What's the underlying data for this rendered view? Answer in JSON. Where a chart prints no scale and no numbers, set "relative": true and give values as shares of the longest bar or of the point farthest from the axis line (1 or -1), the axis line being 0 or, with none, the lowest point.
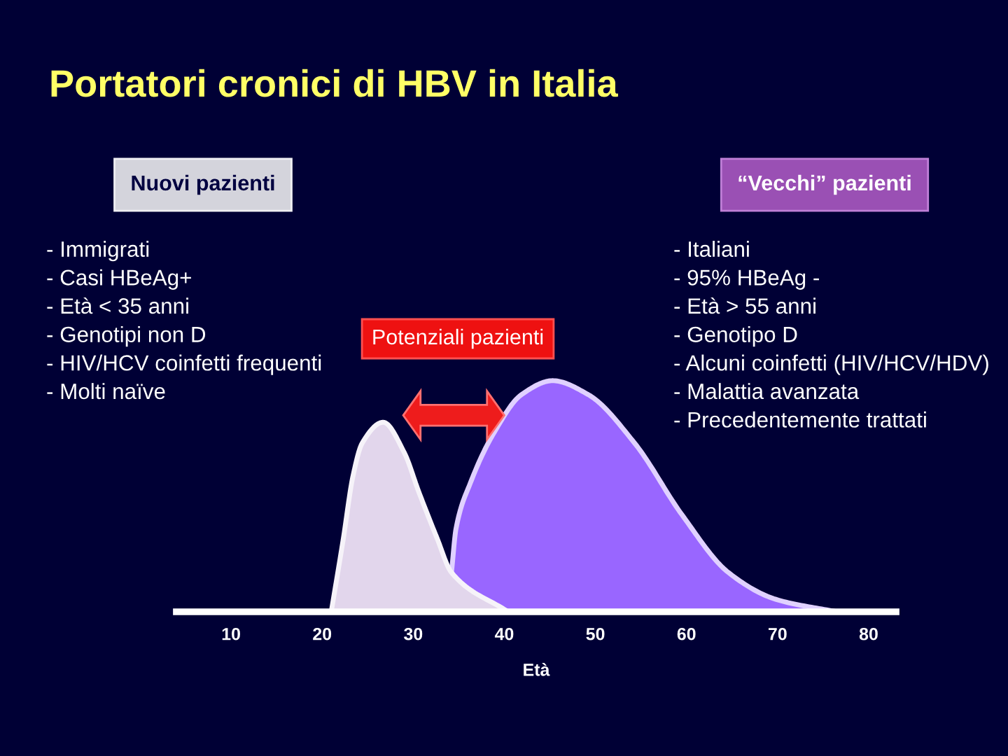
{
  "chart_data": {
    "type": "area",
    "title": "Portatori cronici di HBV in Italia",
    "xlabel": "Età",
    "relative": true,
    "xlim": [
      4,
      83
    ],
    "xticks": [
      10,
      20,
      30,
      40,
      50,
      60,
      70,
      80
    ],
    "tick_labels": "x",
    "series": [
      {
        "color": "#9966ff",
        "x": [
          34.2,
          34.7,
          36.3,
          38.8,
          41.9,
          45.3,
          49.2,
          54.3,
          59.5,
          64.6,
          69.8,
          76.5
        ],
        "values": [
          0.17,
          0.36,
          0.56,
          0.77,
          0.94,
          1,
          0.94,
          0.73,
          0.42,
          0.17,
          0.054,
          0
        ]
      },
      {
        "color": "#e2d6ec",
        "x": [
          21.0,
          22.3,
          23.4,
          24.4,
          26.7,
          29.0,
          30.6,
          32.6,
          34.2,
          40.4
        ],
        "values": [
          0,
          0.31,
          0.59,
          0.73,
          0.82,
          0.69,
          0.52,
          0.32,
          0.17,
          0
        ]
      }
    ],
    "annotations": [
      "Nuovi pazienti",
      "“Vecchi” pazienti",
      "- Immigrati\n- Casi HBeAg+\n- Età < 35 anni\n- Genotipi non D\n- HIV/HCV coinfetti frequenti\n- Molti naïve",
      "- Italiani\n- 95% HBeAg -\n- Età > 55 anni\n- Genotipo D\n- Alcuni coinfetti (HIV/HCV/HDV)\n- Malattia avanzata\n- Precedentemente trattati",
      "Potenziali pazienti"
    ]
  }
}
